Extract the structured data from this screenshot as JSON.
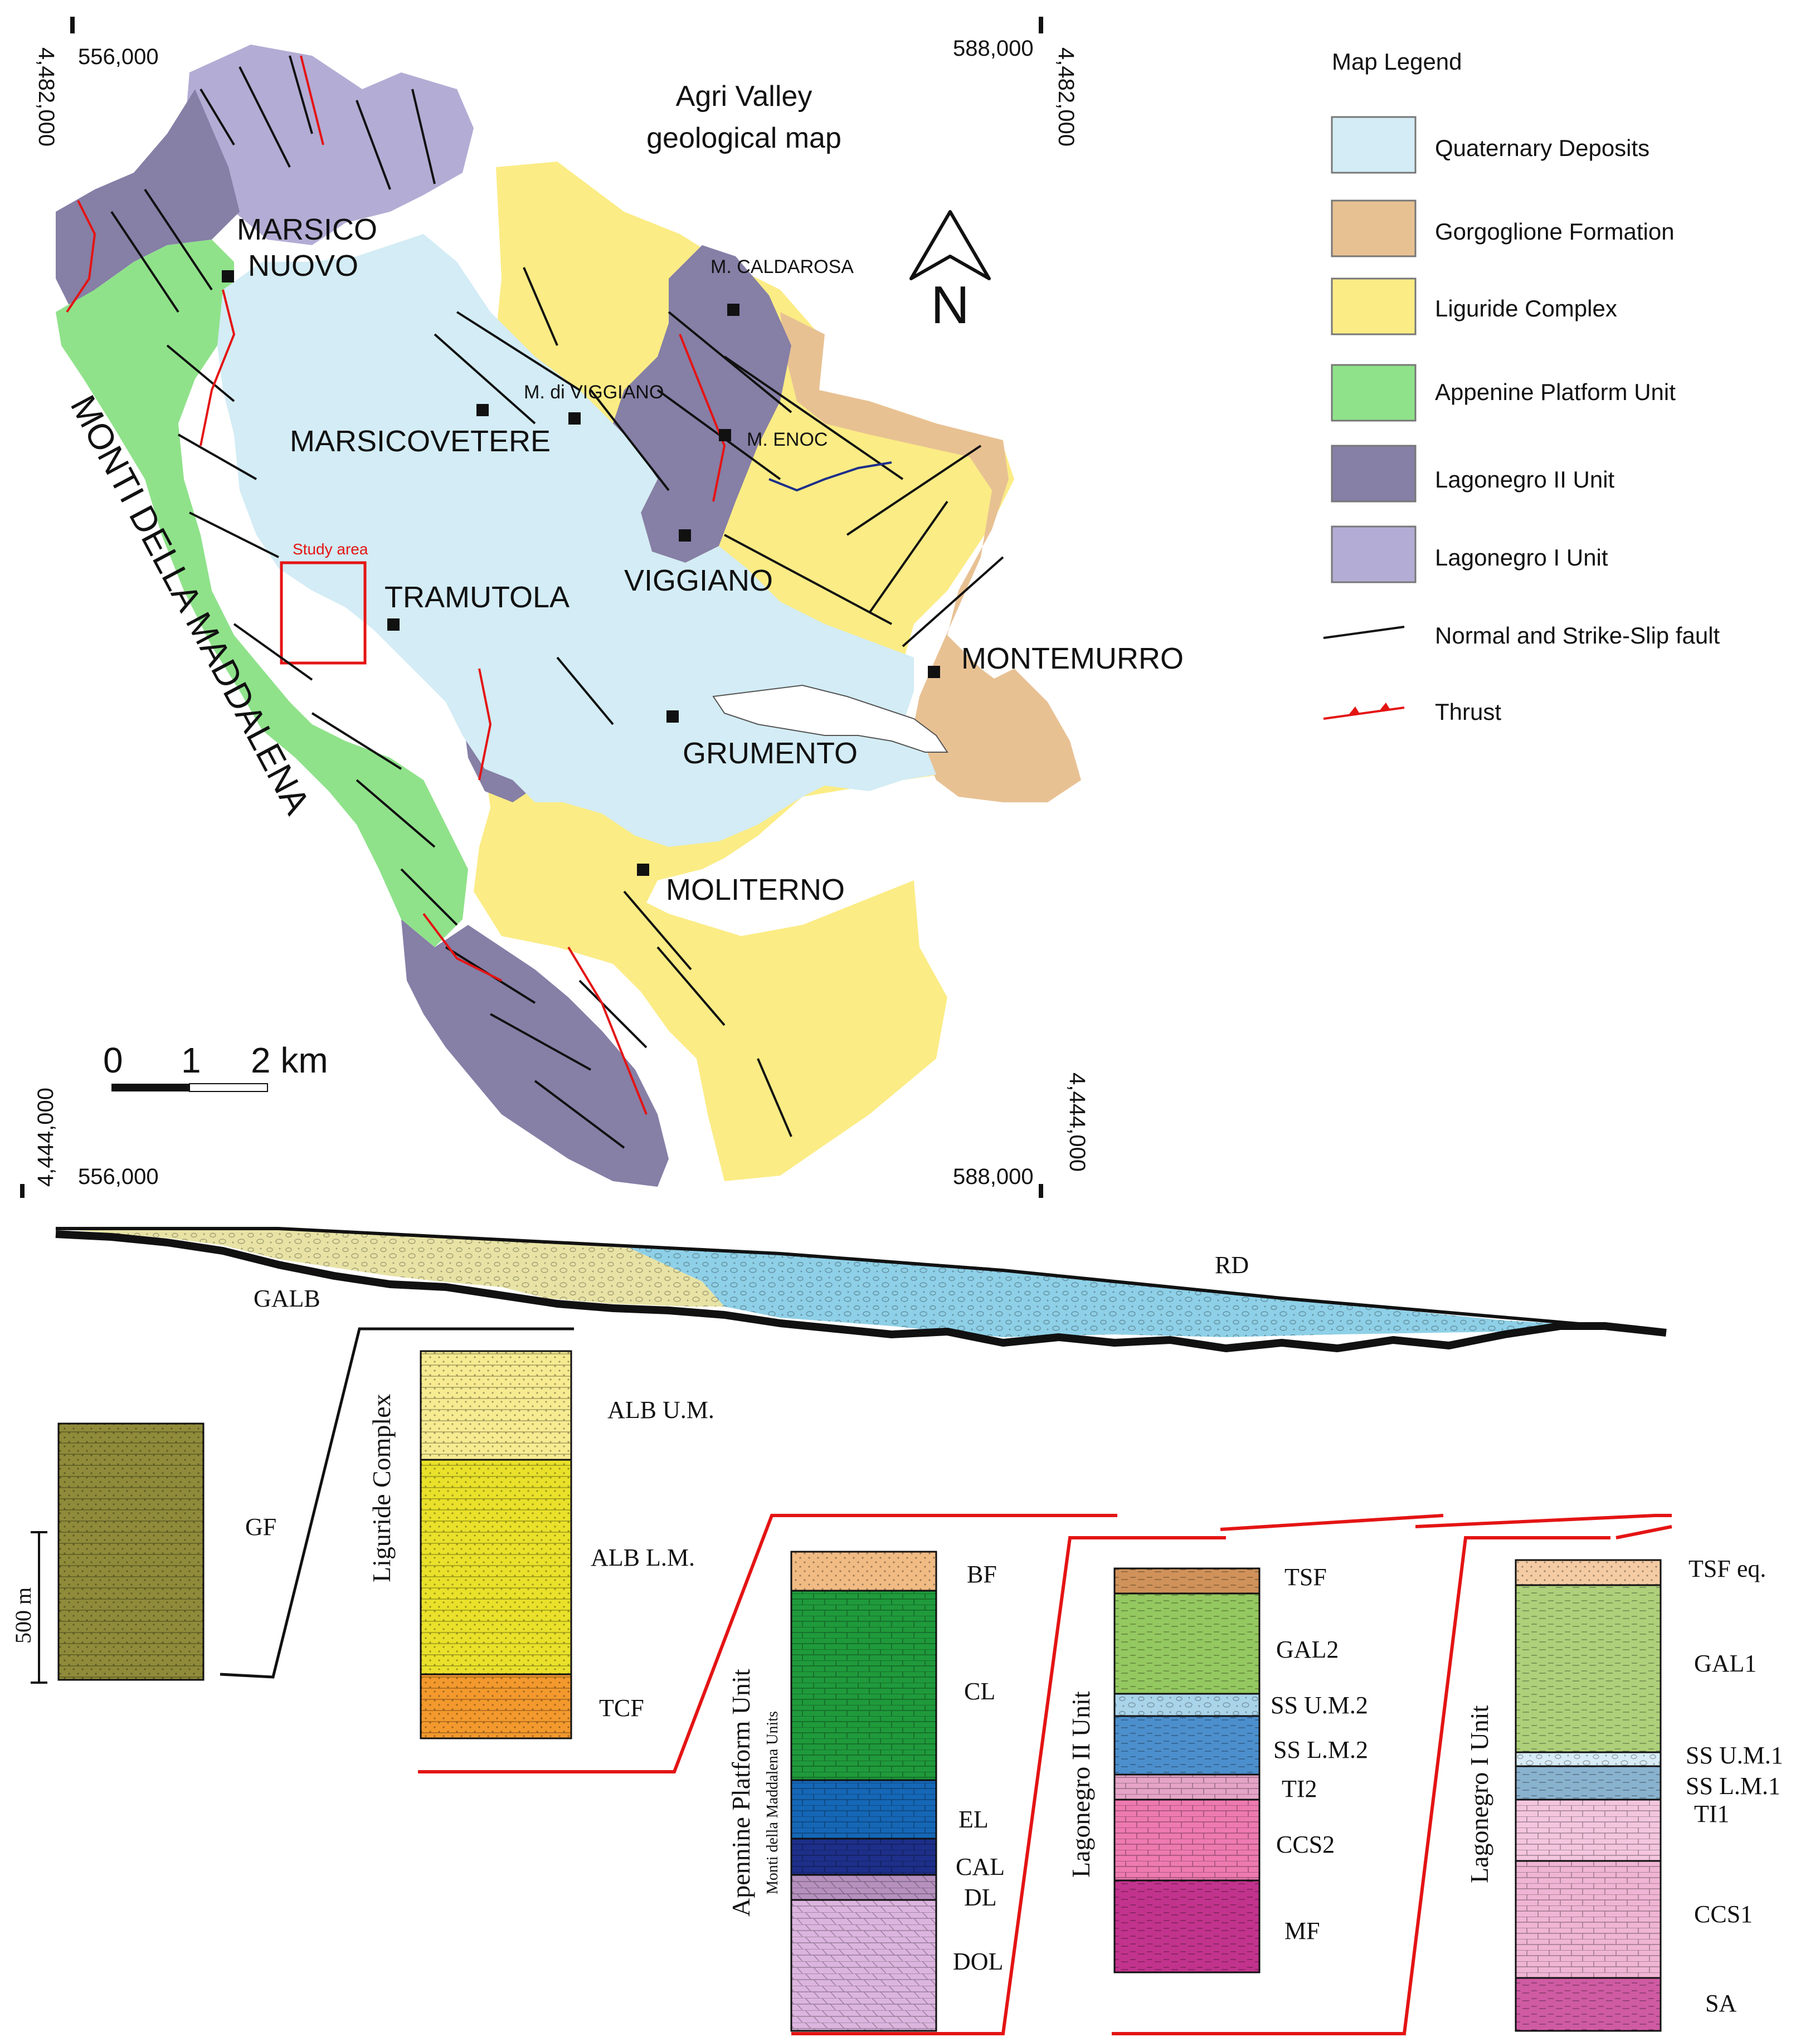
{
  "map": {
    "title_line1": "Agri Valley",
    "title_line2": "geological map",
    "north_label": "N",
    "region_label": "MONTI DELLA MADDALENA",
    "study_area_label": "Study area",
    "coordinates": {
      "top_left_easting": "556,000",
      "top_left_northing": "4,482,000",
      "top_right_easting": "588,000",
      "top_right_northing": "4,482,000",
      "bottom_left_easting": "556,000",
      "bottom_left_northing": "4,444,000",
      "bottom_right_easting": "588,000",
      "bottom_right_northing": "4,444,000"
    },
    "scale_bar": {
      "tick_0": "0",
      "tick_1": "1",
      "tick_2": "2 km"
    },
    "places": [
      {
        "name": "MARSICO",
        "kind": "town"
      },
      {
        "name": "NUOVO",
        "kind": "town"
      },
      {
        "name": "M. CALDAROSA",
        "kind": "peak"
      },
      {
        "name": "M. di VIGGIANO",
        "kind": "peak"
      },
      {
        "name": "MARSICOVETERE",
        "kind": "town"
      },
      {
        "name": "M. ENOC",
        "kind": "peak"
      },
      {
        "name": "VIGGIANO",
        "kind": "town"
      },
      {
        "name": "TRAMUTOLA",
        "kind": "town"
      },
      {
        "name": "MONTEMURRO",
        "kind": "town"
      },
      {
        "name": "GRUMENTO",
        "kind": "town"
      },
      {
        "name": "MOLITERNO",
        "kind": "town"
      }
    ]
  },
  "legend": {
    "title": "Map Legend",
    "items": [
      {
        "label": "Quaternary Deposits",
        "color": "#d3ecf5"
      },
      {
        "label": "Gorgoglione Formation",
        "color": "#e8c193"
      },
      {
        "label": "Liguride Complex",
        "color": "#fbec85"
      },
      {
        "label": "Appenine Platform Unit",
        "color": "#8fe28a"
      },
      {
        "label": "Lagonegro II Unit",
        "color": "#867fa6"
      },
      {
        "label": "Lagonegro I Unit",
        "color": "#b3acd4"
      },
      {
        "label": "Normal and Strike-Slip fault",
        "symbol": "black-line"
      },
      {
        "label": "Thrust",
        "symbol": "red-thrust"
      }
    ]
  },
  "section": {
    "top_deposits": {
      "galb": "GALB",
      "rd": "RD"
    },
    "scale_label": "500 m",
    "gf_column": {
      "label": "GF"
    },
    "liguride": {
      "title": "Liguride Complex",
      "units": [
        "ALB U.M.",
        "ALB L.M.",
        "TCF"
      ]
    },
    "apennine": {
      "title": "Apennine Platform Unit",
      "subtitle": "Monti della Maddalena Units",
      "units": [
        "BF",
        "CL",
        "EL",
        "CAL",
        "DL",
        "DOL"
      ]
    },
    "lagonegro2": {
      "title": "Lagonegro II Unit",
      "units": [
        "TSF",
        "GAL2",
        "SS U.M.2",
        "SS L.M.2",
        "TI2",
        "CCS2",
        "MF"
      ]
    },
    "lagonegro1": {
      "title": "Lagonegro I Unit",
      "units": [
        "TSF eq.",
        "GAL1",
        "SS U.M.1",
        "SS L.M.1",
        "TI1",
        "CCS1",
        "SA"
      ]
    }
  }
}
